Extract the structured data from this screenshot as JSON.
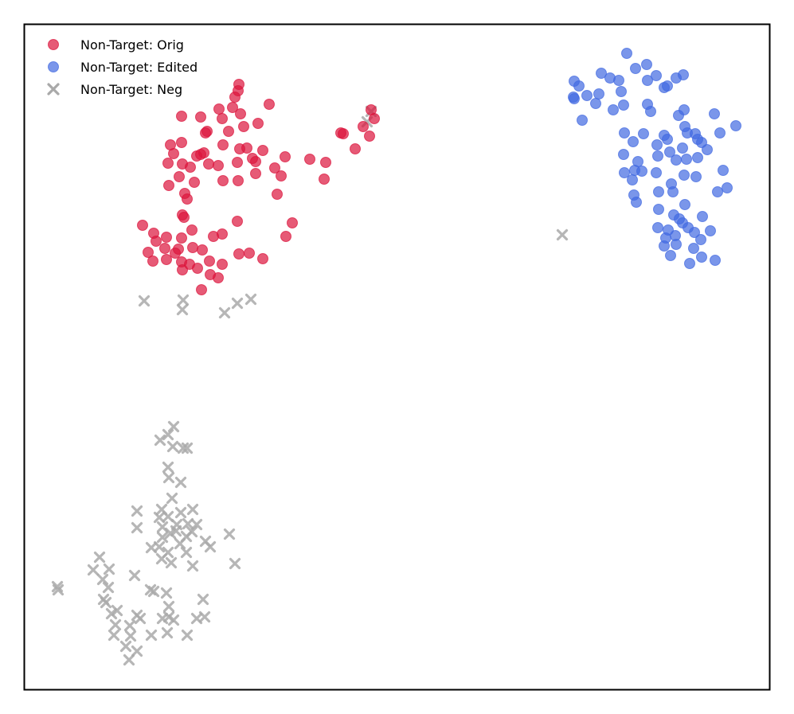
{
  "chart_data": {
    "type": "scatter",
    "title": "",
    "xlabel": "",
    "ylabel": "",
    "axes_ticks": "hidden",
    "grid": false,
    "legend_position": "top-left",
    "series": [
      {
        "name": "Non-Target: Orig",
        "marker": "circle",
        "color": "#DC143C",
        "points": [
          [
            300,
            106
          ],
          [
            299,
            114
          ],
          [
            295,
            122
          ],
          [
            338,
            131
          ],
          [
            275,
            137
          ],
          [
            292,
            135
          ],
          [
            302,
            143
          ],
          [
            228,
            146
          ],
          [
            252,
            147
          ],
          [
            279,
            149
          ],
          [
            324,
            155
          ],
          [
            306,
            159
          ],
          [
            260,
            165
          ],
          [
            287,
            165
          ],
          [
            258,
            167
          ],
          [
            428,
            167
          ],
          [
            431,
            168
          ],
          [
            456,
            159
          ],
          [
            470,
            149
          ],
          [
            466,
            138
          ],
          [
            464,
            171
          ],
          [
            214,
            182
          ],
          [
            228,
            179
          ],
          [
            280,
            182
          ],
          [
            301,
            187
          ],
          [
            310,
            186
          ],
          [
            330,
            189
          ],
          [
            218,
            193
          ],
          [
            256,
            192
          ],
          [
            252,
            194
          ],
          [
            247,
            196
          ],
          [
            446,
            187
          ],
          [
            409,
            204
          ],
          [
            389,
            200
          ],
          [
            358,
            197
          ],
          [
            211,
            205
          ],
          [
            229,
            206
          ],
          [
            239,
            210
          ],
          [
            262,
            206
          ],
          [
            274,
            208
          ],
          [
            298,
            204
          ],
          [
            321,
            203
          ],
          [
            321,
            218
          ],
          [
            345,
            211
          ],
          [
            317,
            199
          ],
          [
            225,
            222
          ],
          [
            244,
            229
          ],
          [
            212,
            233
          ],
          [
            280,
            227
          ],
          [
            299,
            227
          ],
          [
            353,
            221
          ],
          [
            407,
            225
          ],
          [
            232,
            243
          ],
          [
            235,
            250
          ],
          [
            348,
            244
          ],
          [
            229,
            270
          ],
          [
            231,
            273
          ],
          [
            367,
            280
          ],
          [
            298,
            278
          ],
          [
            179,
            283
          ],
          [
            193,
            293
          ],
          [
            209,
            298
          ],
          [
            241,
            289
          ],
          [
            228,
            299
          ],
          [
            268,
            297
          ],
          [
            279,
            294
          ],
          [
            359,
            297
          ],
          [
            196,
            303
          ],
          [
            207,
            312
          ],
          [
            224,
            313
          ],
          [
            220,
            318
          ],
          [
            186,
            317
          ],
          [
            242,
            311
          ],
          [
            254,
            314
          ],
          [
            300,
            319
          ],
          [
            313,
            318
          ],
          [
            330,
            325
          ],
          [
            192,
            328
          ],
          [
            209,
            326
          ],
          [
            228,
            329
          ],
          [
            238,
            332
          ],
          [
            263,
            328
          ],
          [
            279,
            332
          ],
          [
            248,
            337
          ],
          [
            264,
            345
          ],
          [
            274,
            349
          ],
          [
            229,
            339
          ],
          [
            253,
            364
          ]
        ]
      },
      {
        "name": "Non-Target: Edited",
        "marker": "circle",
        "color": "#4169E1",
        "points": [
          [
            787,
            67
          ],
          [
            812,
            81
          ],
          [
            755,
            92
          ],
          [
            766,
            98
          ],
          [
            798,
            86
          ],
          [
            824,
            95
          ],
          [
            858,
            94
          ],
          [
            721,
            102
          ],
          [
            727,
            108
          ],
          [
            777,
            101
          ],
          [
            813,
            101
          ],
          [
            849,
            98
          ],
          [
            720,
            122
          ],
          [
            737,
            120
          ],
          [
            752,
            118
          ],
          [
            780,
            115
          ],
          [
            721,
            124
          ],
          [
            834,
            110
          ],
          [
            838,
            108
          ],
          [
            748,
            130
          ],
          [
            770,
            138
          ],
          [
            783,
            132
          ],
          [
            813,
            131
          ],
          [
            817,
            140
          ],
          [
            852,
            145
          ],
          [
            859,
            138
          ],
          [
            897,
            143
          ],
          [
            731,
            151
          ],
          [
            924,
            158
          ],
          [
            860,
            159
          ],
          [
            784,
            167
          ],
          [
            808,
            168
          ],
          [
            834,
            170
          ],
          [
            863,
            167
          ],
          [
            873,
            168
          ],
          [
            876,
            175
          ],
          [
            904,
            167
          ],
          [
            795,
            178
          ],
          [
            825,
            182
          ],
          [
            838,
            175
          ],
          [
            857,
            186
          ],
          [
            881,
            179
          ],
          [
            888,
            188
          ],
          [
            783,
            194
          ],
          [
            841,
            191
          ],
          [
            876,
            198
          ],
          [
            801,
            203
          ],
          [
            826,
            196
          ],
          [
            862,
            200
          ],
          [
            849,
            201
          ],
          [
            908,
            214
          ],
          [
            784,
            217
          ],
          [
            797,
            214
          ],
          [
            806,
            215
          ],
          [
            824,
            217
          ],
          [
            859,
            220
          ],
          [
            874,
            222
          ],
          [
            794,
            226
          ],
          [
            843,
            231
          ],
          [
            827,
            241
          ],
          [
            845,
            241
          ],
          [
            901,
            241
          ],
          [
            913,
            236
          ],
          [
            796,
            245
          ],
          [
            799,
            254
          ],
          [
            860,
            257
          ],
          [
            827,
            263
          ],
          [
            846,
            270
          ],
          [
            853,
            275
          ],
          [
            882,
            272
          ],
          [
            826,
            286
          ],
          [
            839,
            289
          ],
          [
            857,
            280
          ],
          [
            864,
            286
          ],
          [
            848,
            296
          ],
          [
            872,
            292
          ],
          [
            892,
            290
          ],
          [
            880,
            301
          ],
          [
            836,
            299
          ],
          [
            834,
            309
          ],
          [
            849,
            307
          ],
          [
            871,
            312
          ],
          [
            842,
            321
          ],
          [
            866,
            331
          ],
          [
            881,
            323
          ],
          [
            898,
            327
          ]
        ]
      },
      {
        "name": "Non-Target: Neg",
        "marker": "x",
        "color": "#A9A9A9",
        "points": [
          [
            466,
            140
          ],
          [
            461,
            153
          ],
          [
            706,
            295
          ],
          [
            181,
            378
          ],
          [
            230,
            377
          ],
          [
            229,
            389
          ],
          [
            282,
            393
          ],
          [
            298,
            381
          ],
          [
            315,
            376
          ],
          [
            218,
            536
          ],
          [
            211,
            546
          ],
          [
            201,
            553
          ],
          [
            217,
            561
          ],
          [
            235,
            563
          ],
          [
            230,
            563
          ],
          [
            211,
            587
          ],
          [
            212,
            600
          ],
          [
            227,
            606
          ],
          [
            216,
            626
          ],
          [
            203,
            640
          ],
          [
            242,
            640
          ],
          [
            227,
            644
          ],
          [
            211,
            649
          ],
          [
            172,
            642
          ],
          [
            200,
            650
          ],
          [
            204,
            662
          ],
          [
            222,
            659
          ],
          [
            236,
            658
          ],
          [
            247,
            659
          ],
          [
            172,
            663
          ],
          [
            221,
            667
          ],
          [
            241,
            668
          ],
          [
            214,
            670
          ],
          [
            204,
            675
          ],
          [
            234,
            674
          ],
          [
            226,
            683
          ],
          [
            258,
            680
          ],
          [
            200,
            687
          ],
          [
            190,
            688
          ],
          [
            264,
            687
          ],
          [
            288,
            671
          ],
          [
            211,
            694
          ],
          [
            203,
            702
          ],
          [
            215,
            707
          ],
          [
            234,
            694
          ],
          [
            125,
            700
          ],
          [
            117,
            716
          ],
          [
            137,
            715
          ],
          [
            169,
            723
          ],
          [
            242,
            711
          ],
          [
            295,
            708
          ],
          [
            129,
            728
          ],
          [
            72,
            737
          ],
          [
            73,
            741
          ],
          [
            136,
            738
          ],
          [
            193,
            743
          ],
          [
            209,
            745
          ],
          [
            189,
            741
          ],
          [
            212,
            762
          ],
          [
            255,
            753
          ],
          [
            130,
            753
          ],
          [
            133,
            757
          ],
          [
            147,
            767
          ],
          [
            140,
            771
          ],
          [
            172,
            773
          ],
          [
            204,
            777
          ],
          [
            212,
            775
          ],
          [
            218,
            779
          ],
          [
            247,
            777
          ],
          [
            257,
            775
          ],
          [
            145,
            785
          ],
          [
            163,
            786
          ],
          [
            176,
            777
          ],
          [
            143,
            798
          ],
          [
            164,
            799
          ],
          [
            190,
            798
          ],
          [
            210,
            795
          ],
          [
            235,
            798
          ],
          [
            158,
            812
          ],
          [
            172,
            818
          ],
          [
            162,
            829
          ]
        ]
      }
    ]
  }
}
